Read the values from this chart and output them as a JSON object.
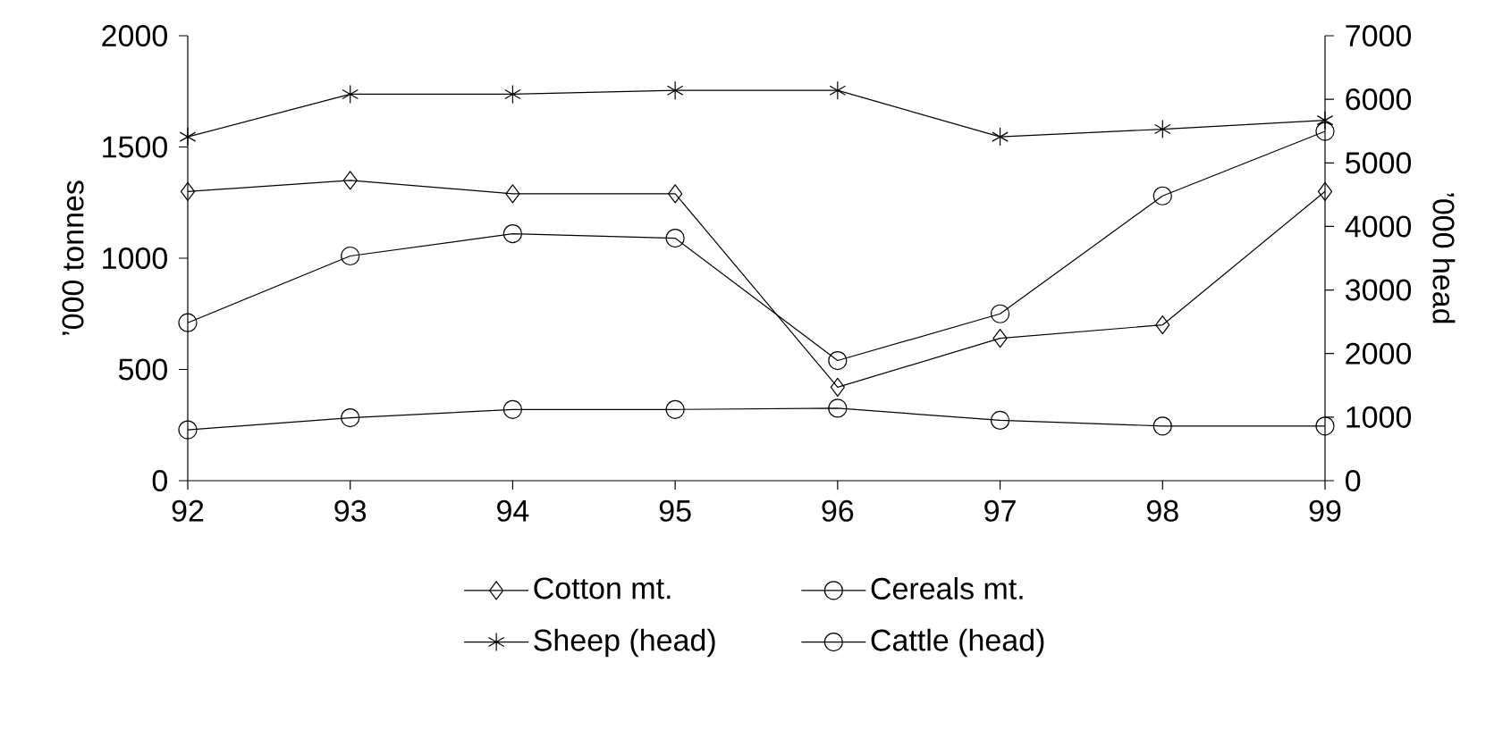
{
  "chart_data": {
    "type": "line",
    "x": [
      92,
      93,
      94,
      95,
      96,
      97,
      98,
      99
    ],
    "xlim": [
      92,
      99
    ],
    "xticks": [
      92,
      93,
      94,
      95,
      96,
      97,
      98,
      99
    ],
    "ylim": [
      0,
      2000
    ],
    "yticks": [
      0,
      500,
      1000,
      1500,
      2000
    ],
    "y2lim": [
      0,
      7000
    ],
    "y2ticks": [
      0,
      1000,
      2000,
      3000,
      4000,
      5000,
      6000,
      7000
    ],
    "ylabel": "’000 tonnes",
    "y2label": "’000 head",
    "legend": "bottom",
    "grid": false,
    "series": [
      {
        "name": "Cotton mt.",
        "color": "#000000",
        "marker": "diamond",
        "values": [
          1300,
          1350,
          1290,
          1290,
          420,
          640,
          700,
          1300
        ]
      },
      {
        "name": "Cereals mt.",
        "color": "#000000",
        "marker": "circle",
        "values": [
          710,
          1010,
          1110,
          1090,
          540,
          750,
          1280,
          1570
        ]
      },
      {
        "name": "Sheep (head)",
        "color": "#000000",
        "marker": "cross",
        "axis": "y2",
        "values": [
          5410,
          6080,
          6080,
          6140,
          6140,
          5410,
          5530,
          5670
        ]
      },
      {
        "name": "Cattle (head)",
        "color": "#000000",
        "marker": "circle",
        "axis": "y2",
        "values": [
          800,
          990,
          1120,
          1120,
          1140,
          950,
          860,
          860
        ]
      }
    ]
  }
}
